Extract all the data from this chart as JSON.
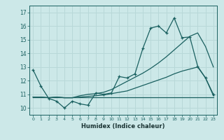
{
  "xlabel": "Humidex (Indice chaleur)",
  "background_color": "#cce8e8",
  "grid_color": "#b8d8d8",
  "line_color": "#1a6060",
  "xlim": [
    -0.5,
    23.5
  ],
  "ylim": [
    9.5,
    17.5
  ],
  "yticks": [
    10,
    11,
    12,
    13,
    14,
    15,
    16,
    17
  ],
  "xticks": [
    0,
    1,
    2,
    3,
    4,
    5,
    6,
    7,
    8,
    9,
    10,
    11,
    12,
    13,
    14,
    15,
    16,
    17,
    18,
    19,
    20,
    21,
    22,
    23
  ],
  "line1_x": [
    0,
    1,
    2,
    3,
    4,
    5,
    6,
    7,
    8,
    9,
    10,
    11,
    12,
    13,
    14,
    15,
    16,
    17,
    18,
    19,
    20,
    21,
    22,
    23
  ],
  "line1_y": [
    12.8,
    11.6,
    10.7,
    10.5,
    10.0,
    10.5,
    10.3,
    10.2,
    11.1,
    11.0,
    11.1,
    12.3,
    12.2,
    12.5,
    14.35,
    15.85,
    16.0,
    15.5,
    16.6,
    15.15,
    15.2,
    13.05,
    12.2,
    11.0
  ],
  "line2_x": [
    0,
    1,
    2,
    3,
    4,
    5,
    6,
    7,
    8,
    9,
    10,
    11,
    12,
    13,
    14,
    15,
    16,
    17,
    18,
    19,
    20,
    21,
    22,
    23
  ],
  "line2_y": [
    10.8,
    10.8,
    10.75,
    10.8,
    10.75,
    10.75,
    10.8,
    10.85,
    10.9,
    10.95,
    11.05,
    11.15,
    11.25,
    11.45,
    11.65,
    11.85,
    12.05,
    12.25,
    12.5,
    12.7,
    12.85,
    13.0,
    12.2,
    10.9
  ],
  "line3_x": [
    0,
    1,
    2,
    3,
    4,
    5,
    6,
    7,
    8,
    9,
    10,
    11,
    12,
    13,
    14,
    15,
    16,
    17,
    18,
    19,
    20,
    21,
    22,
    23
  ],
  "line3_y": [
    10.8,
    10.8,
    10.75,
    10.8,
    10.75,
    10.75,
    10.9,
    11.0,
    11.05,
    11.15,
    11.35,
    11.65,
    11.95,
    12.25,
    12.55,
    12.9,
    13.3,
    13.75,
    14.25,
    14.75,
    15.25,
    15.5,
    14.5,
    13.0
  ],
  "line4_x": [
    0,
    23
  ],
  "line4_y": [
    10.8,
    10.8
  ]
}
